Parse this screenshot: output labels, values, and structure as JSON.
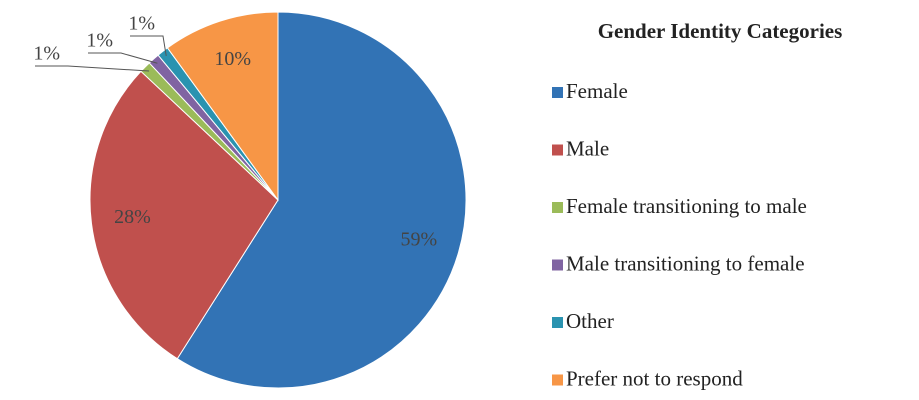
{
  "chart_data": {
    "type": "pie",
    "title": "Gender Identity Categories",
    "categories": [
      "Female",
      "Male",
      "Female transitioning to male",
      "Male transitioning to female",
      "Other",
      "Prefer not to respond"
    ],
    "values": [
      59,
      28,
      1,
      1,
      1,
      10
    ],
    "value_labels": [
      "59%",
      "28%",
      "1%",
      "1%",
      "1%",
      "10%"
    ],
    "colors": [
      "#3273b5",
      "#c0504d",
      "#9bbb59",
      "#8064a2",
      "#2a93b0",
      "#f79646"
    ],
    "legend": "right"
  }
}
